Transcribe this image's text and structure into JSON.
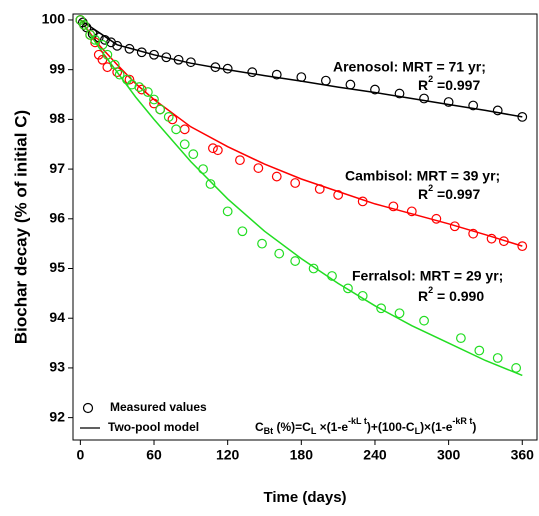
{
  "chart_data": {
    "type": "scatter-line",
    "xlabel": "Time (days)",
    "ylabel": "Biochar decay (% of initial C)",
    "xlim": [
      -6,
      372
    ],
    "ylim": [
      91.55,
      100.12
    ],
    "xticks": [
      0,
      60,
      120,
      180,
      240,
      300,
      360
    ],
    "yticks": [
      92,
      93,
      94,
      95,
      96,
      97,
      98,
      99,
      100
    ],
    "series": [
      {
        "color": "#000000",
        "x": [
          0,
          2,
          5,
          10,
          15,
          20,
          25,
          30,
          40,
          50,
          60,
          70,
          80,
          90,
          110,
          120,
          140,
          160,
          180,
          200,
          220,
          240,
          260,
          280,
          300,
          320,
          340,
          360
        ],
        "values": [
          100,
          99.95,
          99.85,
          99.72,
          99.65,
          99.6,
          99.55,
          99.48,
          99.42,
          99.35,
          99.3,
          99.25,
          99.2,
          99.15,
          99.05,
          99.02,
          98.95,
          98.9,
          98.85,
          98.78,
          98.7,
          98.6,
          98.52,
          98.42,
          98.35,
          98.28,
          98.18,
          98.05
        ]
      },
      {
        "color": "#ff0000",
        "x": [
          0,
          3,
          8,
          12,
          15,
          18,
          22,
          30,
          40,
          50,
          60,
          65,
          75,
          85,
          108,
          112,
          130,
          145,
          160,
          175,
          195,
          210,
          230,
          255,
          270,
          290,
          305,
          320,
          335,
          345,
          360
        ],
        "values": [
          100,
          99.9,
          99.7,
          99.55,
          99.3,
          99.2,
          99.05,
          98.95,
          98.8,
          98.6,
          98.32,
          98.2,
          98.0,
          97.8,
          97.42,
          97.38,
          97.18,
          97.02,
          96.85,
          96.72,
          96.6,
          96.48,
          96.35,
          96.25,
          96.15,
          96.0,
          95.85,
          95.7,
          95.6,
          95.55,
          95.45
        ]
      },
      {
        "color": "#22dd22",
        "x": [
          0,
          3,
          8,
          12,
          18,
          22,
          28,
          32,
          38,
          42,
          48,
          55,
          60,
          65,
          72,
          78,
          85,
          92,
          100,
          106,
          120,
          132,
          148,
          162,
          175,
          190,
          205,
          218,
          230,
          245,
          260,
          280,
          310,
          325,
          340,
          355
        ],
        "values": [
          100,
          99.9,
          99.7,
          99.6,
          99.5,
          99.3,
          99.1,
          98.9,
          98.8,
          98.7,
          98.65,
          98.55,
          98.4,
          98.2,
          98.05,
          97.8,
          97.5,
          97.3,
          97.0,
          96.7,
          96.15,
          95.75,
          95.5,
          95.3,
          95.15,
          95.0,
          94.85,
          94.6,
          94.45,
          94.2,
          94.1,
          93.95,
          93.6,
          93.35,
          93.2,
          93.0
        ]
      }
    ],
    "curves": [
      {
        "color": "#000000",
        "x": [
          0,
          30,
          60,
          90,
          120,
          150,
          180,
          210,
          240,
          270,
          300,
          330,
          360
        ],
        "values": [
          100,
          99.5,
          99.3,
          99.13,
          99.0,
          98.88,
          98.77,
          98.65,
          98.54,
          98.42,
          98.3,
          98.18,
          98.05
        ]
      },
      {
        "color": "#ff0000",
        "x": [
          0,
          15,
          30,
          45,
          60,
          90,
          120,
          150,
          180,
          210,
          240,
          270,
          300,
          330,
          360
        ],
        "values": [
          100,
          99.5,
          99.1,
          98.72,
          98.4,
          97.85,
          97.45,
          97.1,
          96.8,
          96.55,
          96.3,
          96.1,
          95.9,
          95.68,
          95.45
        ]
      },
      {
        "color": "#22dd22",
        "x": [
          0,
          15,
          30,
          45,
          60,
          90,
          120,
          150,
          180,
          210,
          240,
          270,
          300,
          330,
          360
        ],
        "values": [
          100,
          99.45,
          98.95,
          98.45,
          98.0,
          97.15,
          96.4,
          95.75,
          95.2,
          94.7,
          94.25,
          93.85,
          93.5,
          93.15,
          92.85
        ]
      }
    ],
    "annotations": [
      {
        "text": "Arenosol: MRT = 71 yr;",
        "r2": [
          "R",
          "2",
          " =0.997"
        ]
      },
      {
        "text": "Cambisol: MRT = 39 yr;",
        "r2": [
          "R",
          "2",
          " =0.997"
        ]
      },
      {
        "text": "Ferralsol: MRT = 29 yr;",
        "r2": [
          "R",
          "2",
          " = 0.990"
        ]
      }
    ],
    "legend": {
      "entries": [
        "Measured values",
        "Two-pool model"
      ],
      "formula": [
        {
          "text": "C"
        },
        {
          "text": "Bt",
          "shift": "sub"
        },
        {
          "text": " (%)=C"
        },
        {
          "text": "L",
          "shift": "sub"
        },
        {
          "text": " ×(1-e"
        },
        {
          "text": "-kL t",
          "shift": "super"
        },
        {
          "text": ")+(100-C"
        },
        {
          "text": "L",
          "shift": "sub"
        },
        {
          "text": ")×(1-e"
        },
        {
          "text": "-kR t",
          "shift": "super"
        },
        {
          "text": ")"
        }
      ]
    }
  }
}
